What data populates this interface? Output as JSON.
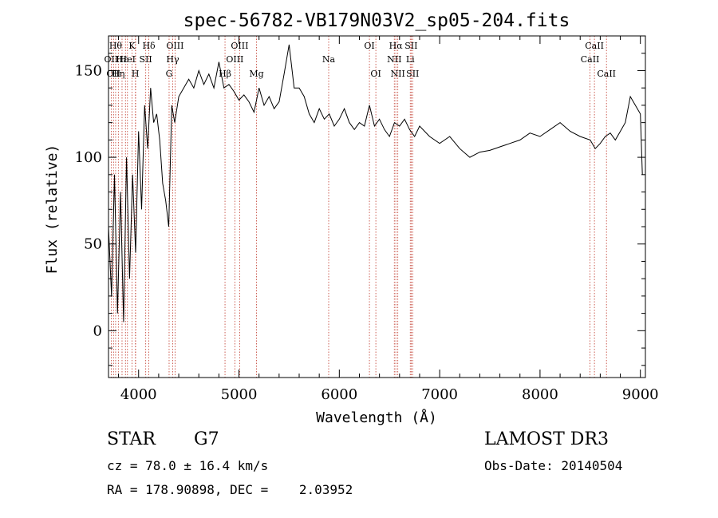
{
  "chart_data": {
    "type": "line",
    "title": "spec-56782-VB179N03V2_sp05-204.fits",
    "xlabel": "Wavelength (Å)",
    "ylabel": "Flux (relative)",
    "xlim": [
      3700,
      9050
    ],
    "ylim": [
      -27,
      170
    ],
    "x_ticks": [
      4000,
      5000,
      6000,
      7000,
      8000,
      9000
    ],
    "y_ticks": [
      0,
      50,
      100,
      150
    ],
    "series": [
      {
        "name": "flux",
        "x": [
          3700,
          3730,
          3760,
          3790,
          3820,
          3850,
          3880,
          3910,
          3940,
          3970,
          4000,
          4030,
          4060,
          4090,
          4120,
          4150,
          4180,
          4210,
          4240,
          4270,
          4300,
          4330,
          4360,
          4400,
          4450,
          4500,
          4550,
          4600,
          4650,
          4700,
          4750,
          4800,
          4850,
          4900,
          4950,
          5000,
          5050,
          5100,
          5150,
          5200,
          5250,
          5300,
          5350,
          5400,
          5450,
          5500,
          5550,
          5600,
          5650,
          5700,
          5750,
          5800,
          5850,
          5900,
          5950,
          6000,
          6050,
          6100,
          6150,
          6200,
          6250,
          6300,
          6350,
          6400,
          6450,
          6500,
          6550,
          6600,
          6650,
          6700,
          6750,
          6800,
          6900,
          7000,
          7100,
          7200,
          7300,
          7400,
          7500,
          7600,
          7700,
          7800,
          7900,
          8000,
          8100,
          8200,
          8300,
          8400,
          8500,
          8550,
          8600,
          8650,
          8700,
          8750,
          8800,
          8850,
          8900,
          8950,
          9000,
          9020
        ],
        "values": [
          60,
          20,
          90,
          10,
          80,
          5,
          100,
          30,
          90,
          45,
          115,
          70,
          130,
          105,
          140,
          120,
          125,
          110,
          85,
          75,
          60,
          130,
          120,
          135,
          140,
          145,
          140,
          150,
          142,
          148,
          140,
          155,
          140,
          142,
          138,
          133,
          136,
          132,
          126,
          140,
          130,
          135,
          128,
          132,
          148,
          165,
          140,
          140,
          135,
          125,
          120,
          128,
          122,
          125,
          118,
          122,
          128,
          120,
          116,
          120,
          118,
          130,
          118,
          122,
          116,
          112,
          120,
          118,
          122,
          116,
          112,
          118,
          112,
          108,
          112,
          105,
          100,
          103,
          104,
          106,
          108,
          110,
          114,
          112,
          116,
          120,
          115,
          112,
          110,
          105,
          108,
          112,
          114,
          110,
          115,
          120,
          135,
          130,
          125,
          90
        ]
      }
    ],
    "lines": [
      {
        "wl": 3727,
        "label": "OII",
        "row": 1
      },
      {
        "wl": 3750,
        "label": "OII",
        "row": 2
      },
      {
        "wl": 3771,
        "label": "Hθ",
        "row": 0
      },
      {
        "wl": 3798,
        "label": "Hη",
        "row": 2
      },
      {
        "wl": 3835,
        "label": "Hε",
        "row": 1
      },
      {
        "wl": 3869,
        "label": "",
        "row": -1
      },
      {
        "wl": 3889,
        "label": "HeI",
        "row": 1
      },
      {
        "wl": 3934,
        "label": "K",
        "row": 0
      },
      {
        "wl": 3968,
        "label": "H",
        "row": 2
      },
      {
        "wl": 3970,
        "label": "",
        "row": -1
      },
      {
        "wl": 4071,
        "label": "SII",
        "row": 1
      },
      {
        "wl": 4102,
        "label": "Hδ",
        "row": 0
      },
      {
        "wl": 4304,
        "label": "G",
        "row": 2
      },
      {
        "wl": 4340,
        "label": "Hγ",
        "row": 1
      },
      {
        "wl": 4363,
        "label": "OIII",
        "row": 0
      },
      {
        "wl": 4861,
        "label": "Hβ",
        "row": 2
      },
      {
        "wl": 4959,
        "label": "OIII",
        "row": 1
      },
      {
        "wl": 5007,
        "label": "OIII",
        "row": 0
      },
      {
        "wl": 5175,
        "label": "Mg",
        "row": 2
      },
      {
        "wl": 5894,
        "label": "Na",
        "row": 1
      },
      {
        "wl": 6300,
        "label": "OI",
        "row": 0
      },
      {
        "wl": 6364,
        "label": "OI",
        "row": 2
      },
      {
        "wl": 6548,
        "label": "NII",
        "row": 1
      },
      {
        "wl": 6563,
        "label": "Hα",
        "row": 0
      },
      {
        "wl": 6583,
        "label": "NII",
        "row": 2
      },
      {
        "wl": 6707,
        "label": "Li",
        "row": 1
      },
      {
        "wl": 6716,
        "label": "SII",
        "row": 0
      },
      {
        "wl": 6731,
        "label": "SII",
        "row": 2
      },
      {
        "wl": 8498,
        "label": "CaII",
        "row": 1
      },
      {
        "wl": 8542,
        "label": "CaII",
        "row": 0
      },
      {
        "wl": 8662,
        "label": "CaII",
        "row": 2
      }
    ]
  },
  "info": {
    "class": "STAR",
    "subclass": "G7",
    "survey": "LAMOST DR3",
    "cz": "cz = 78.0 ± 16.4 km/s",
    "obs_date": "Obs-Date: 20140504",
    "coords": "RA = 178.90898, DEC =    2.03952"
  }
}
